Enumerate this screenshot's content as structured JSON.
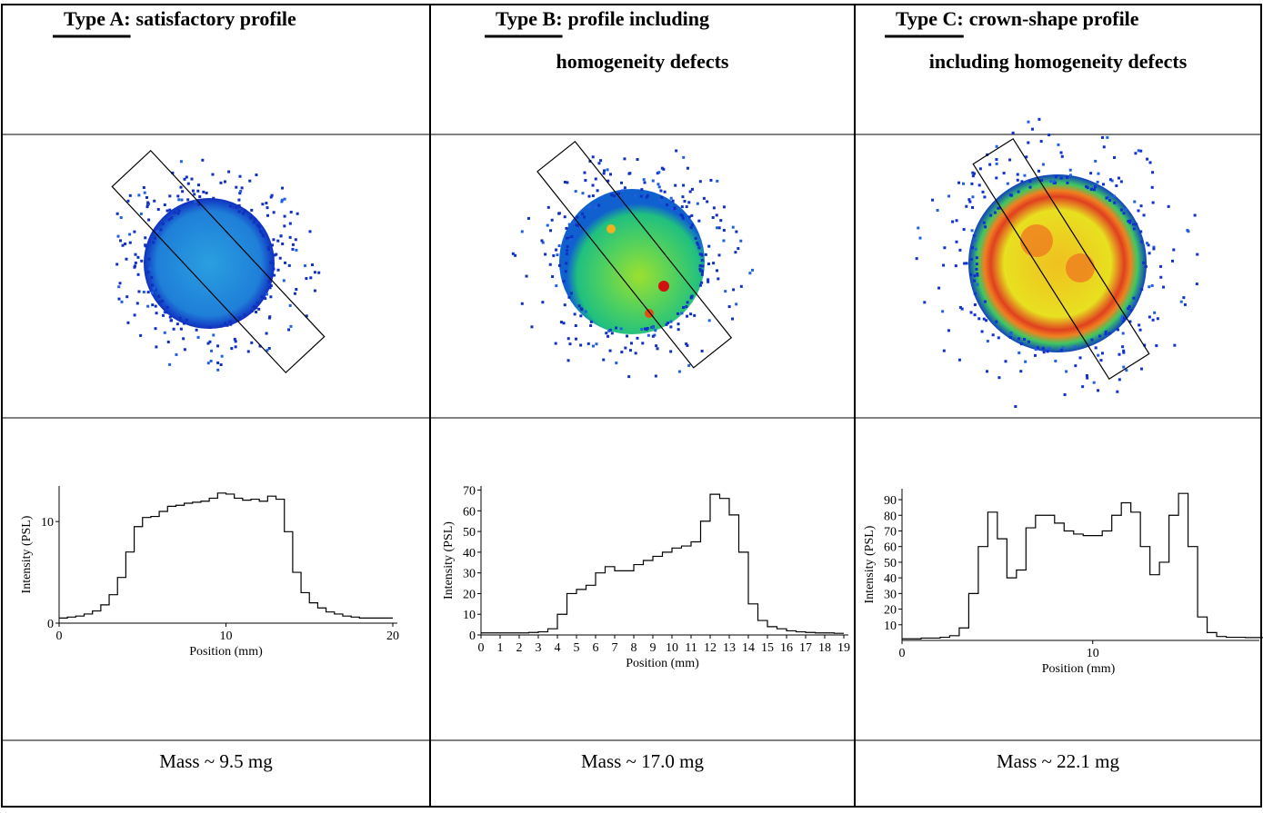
{
  "header": [
    {
      "label": "Type A:",
      "lines": [
        "satisfactory profile"
      ]
    },
    {
      "label": "Type B:",
      "lines": [
        "profile including",
        "homogeneity defects"
      ]
    },
    {
      "label": "Type C:",
      "lines": [
        "crown-shape profile",
        "including homogeneity defects"
      ]
    }
  ],
  "chart_data": [
    {
      "type": "line",
      "step": true,
      "color": "#000000",
      "ylabel": "Intensity (PSL)",
      "xlabel": "Position (mm)",
      "xlim": [
        0,
        20
      ],
      "xticks": [
        0,
        10,
        20
      ],
      "ylim": [
        0,
        13.5
      ],
      "yticks": [
        0,
        10
      ],
      "x": [
        0,
        0.5,
        1,
        1.5,
        2,
        2.5,
        3,
        3.5,
        4,
        4.5,
        5,
        5.5,
        6,
        6.5,
        7,
        7.5,
        8,
        8.5,
        9,
        9.5,
        10,
        10.5,
        11,
        11.5,
        12,
        12.5,
        13,
        13.5,
        14,
        14.5,
        15,
        15.5,
        16,
        16.5,
        17,
        17.5,
        18,
        18.5,
        19,
        19.5
      ],
      "values": [
        0.5,
        0.6,
        0.7,
        0.9,
        1.2,
        1.8,
        2.8,
        4.5,
        7,
        9.5,
        10.4,
        10.5,
        11,
        11.5,
        11.6,
        11.8,
        11.9,
        12,
        12.3,
        12.8,
        12.7,
        12.3,
        12.1,
        12.2,
        12,
        12.5,
        12.2,
        9,
        5,
        3,
        2,
        1.5,
        1.1,
        0.9,
        0.7,
        0.6,
        0.5,
        0.5,
        0.5,
        0.5
      ]
    },
    {
      "type": "line",
      "step": true,
      "color": "#000000",
      "ylabel": "Intensity (PSL)",
      "xlabel": "Position (mm)",
      "xlim": [
        0,
        19
      ],
      "xticks": [
        0,
        1,
        2,
        3,
        4,
        5,
        6,
        7,
        8,
        9,
        10,
        11,
        12,
        13,
        14,
        15,
        16,
        17,
        18,
        19
      ],
      "ylim": [
        0,
        72
      ],
      "yticks": [
        0,
        10,
        20,
        30,
        40,
        50,
        60,
        70
      ],
      "x": [
        0,
        0.5,
        1,
        1.5,
        2,
        2.5,
        3,
        3.5,
        4,
        4.5,
        5,
        5.5,
        6,
        6.5,
        7,
        7.5,
        8,
        8.5,
        9,
        9.5,
        10,
        10.5,
        11,
        11.5,
        12,
        12.5,
        13,
        13.5,
        14,
        14.5,
        15,
        15.5,
        16,
        16.5,
        17,
        17.5,
        18,
        18.5
      ],
      "values": [
        1,
        1,
        1,
        1,
        1,
        1.2,
        1.5,
        3,
        10,
        20,
        22,
        24,
        30,
        33,
        31,
        31,
        34,
        36,
        38,
        40,
        42,
        43,
        45,
        55,
        68,
        66,
        58,
        40,
        15,
        7,
        4,
        3,
        2,
        1.5,
        1.2,
        1,
        1,
        0.8
      ]
    },
    {
      "type": "line",
      "step": true,
      "color": "#000000",
      "ylabel": "Intensity (PSL)",
      "xlabel": "Position (mm)",
      "xlim": [
        0,
        18.5
      ],
      "xticks": [
        0,
        10
      ],
      "ylim": [
        0,
        97
      ],
      "yticks": [
        10,
        20,
        30,
        40,
        50,
        60,
        70,
        80,
        90
      ],
      "x": [
        0,
        1,
        2,
        2.5,
        3,
        3.5,
        4,
        4.5,
        5,
        5.5,
        6,
        6.5,
        7,
        7.5,
        8,
        8.5,
        9,
        9.5,
        10,
        10.5,
        11,
        11.5,
        12,
        12.5,
        13,
        13.5,
        14,
        14.5,
        15,
        15.5,
        16,
        16.5,
        17,
        18
      ],
      "values": [
        1,
        1.5,
        2,
        3,
        8,
        30,
        60,
        82,
        65,
        40,
        45,
        72,
        80,
        80,
        75,
        70,
        68,
        67,
        67,
        70,
        80,
        88,
        82,
        60,
        42,
        50,
        80,
        94,
        60,
        15,
        5,
        2.5,
        2,
        1.8
      ]
    }
  ],
  "mass": [
    "Mass ~ 9.5 mg",
    "Mass ~ 17.0 mg",
    "Mass ~ 22.1 mg"
  ]
}
